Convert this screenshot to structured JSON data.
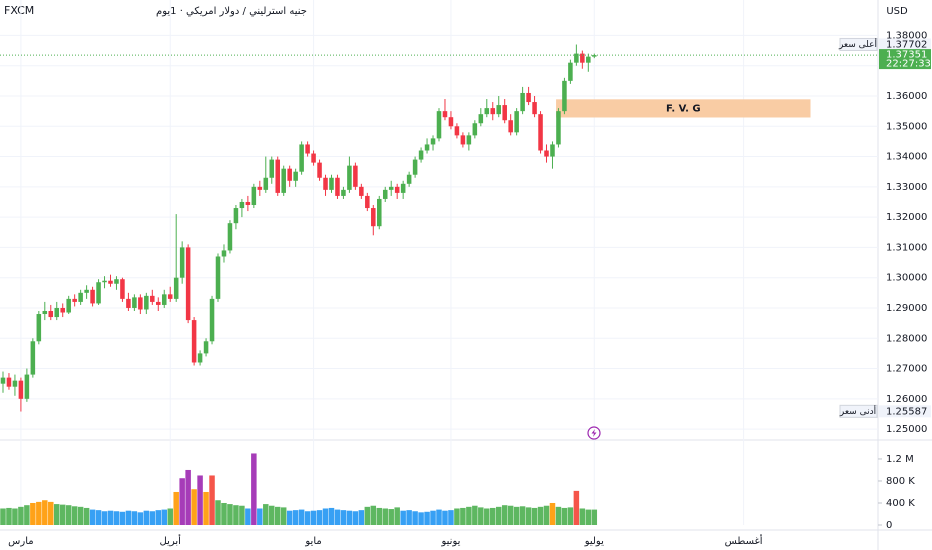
{
  "chart_data": {
    "type": "candlestick",
    "broker": "FXCM",
    "title": "جنيه استرليني / دولار امريكي · 1يوم",
    "currency": "USD",
    "up_color": "#4caf50",
    "down_color": "#f23645",
    "grid": true,
    "ylim": [
      1.2464,
      1.3917
    ],
    "yticks": [
      {
        "value": 1.38,
        "label": "1.38000"
      },
      {
        "value": 1.37,
        "label": "1.37000"
      },
      {
        "value": 1.36,
        "label": "1.36000"
      },
      {
        "value": 1.35,
        "label": "1.35000"
      },
      {
        "value": 1.34,
        "label": "1.34000"
      },
      {
        "value": 1.33,
        "label": "1.33000"
      },
      {
        "value": 1.32,
        "label": "1.32000"
      },
      {
        "value": 1.31,
        "label": "1.31000"
      },
      {
        "value": 1.3,
        "label": "1.30000"
      },
      {
        "value": 1.29,
        "label": "1.29000"
      },
      {
        "value": 1.28,
        "label": "1.28000"
      },
      {
        "value": 1.27,
        "label": "1.27000"
      },
      {
        "value": 1.26,
        "label": "1.26000"
      },
      {
        "value": 1.25,
        "label": "1.25000"
      }
    ],
    "xlim": [
      -0.5,
      146.5
    ],
    "xticks": [
      {
        "value": 3,
        "label": "مارس"
      },
      {
        "value": 28,
        "label": "أبريل"
      },
      {
        "value": 52,
        "label": "مايو"
      },
      {
        "value": 75,
        "label": "يونيو"
      },
      {
        "value": 99,
        "label": "يوليو"
      },
      {
        "value": 124,
        "label": "أغسطس"
      }
    ],
    "ohlc": [
      [
        1.265,
        1.269,
        1.262,
        1.267
      ],
      [
        1.267,
        1.2685,
        1.263,
        1.264
      ],
      [
        1.264,
        1.268,
        1.261,
        1.266
      ],
      [
        1.266,
        1.267,
        1.2558,
        1.26
      ],
      [
        1.26,
        1.27,
        1.259,
        1.268
      ],
      [
        1.268,
        1.28,
        1.267,
        1.279
      ],
      [
        1.279,
        1.289,
        1.278,
        1.288
      ],
      [
        1.288,
        1.292,
        1.286,
        1.289
      ],
      [
        1.289,
        1.291,
        1.286,
        1.287
      ],
      [
        1.287,
        1.292,
        1.286,
        1.29
      ],
      [
        1.29,
        1.2915,
        1.287,
        1.2885
      ],
      [
        1.2885,
        1.294,
        1.288,
        1.293
      ],
      [
        1.293,
        1.2945,
        1.2905,
        1.292
      ],
      [
        1.292,
        1.296,
        1.291,
        1.295
      ],
      [
        1.295,
        1.2975,
        1.293,
        1.296
      ],
      [
        1.296,
        1.297,
        1.2905,
        1.2915
      ],
      [
        1.2915,
        1.2995,
        1.291,
        1.2985
      ],
      [
        1.2985,
        1.3005,
        1.2965,
        1.299
      ],
      [
        1.299,
        1.301,
        1.297,
        1.298
      ],
      [
        1.298,
        1.3005,
        1.296,
        1.2995
      ],
      [
        1.2995,
        1.3,
        1.292,
        1.293
      ],
      [
        1.293,
        1.295,
        1.289,
        1.29
      ],
      [
        1.29,
        1.2945,
        1.289,
        1.2935
      ],
      [
        1.2935,
        1.2945,
        1.288,
        1.2895
      ],
      [
        1.2895,
        1.295,
        1.288,
        1.294
      ],
      [
        1.294,
        1.296,
        1.291,
        1.292
      ],
      [
        1.292,
        1.2935,
        1.289,
        1.291
      ],
      [
        1.291,
        1.296,
        1.29,
        1.2945
      ],
      [
        1.2945,
        1.297,
        1.292,
        1.293
      ],
      [
        1.293,
        1.321,
        1.292,
        1.3
      ],
      [
        1.3,
        1.312,
        1.298,
        1.31
      ],
      [
        1.31,
        1.311,
        1.285,
        1.286
      ],
      [
        1.286,
        1.287,
        1.271,
        1.272
      ],
      [
        1.272,
        1.276,
        1.271,
        1.275
      ],
      [
        1.275,
        1.28,
        1.274,
        1.279
      ],
      [
        1.279,
        1.294,
        1.278,
        1.293
      ],
      [
        1.293,
        1.308,
        1.292,
        1.307
      ],
      [
        1.307,
        1.311,
        1.305,
        1.309
      ],
      [
        1.309,
        1.319,
        1.308,
        1.318
      ],
      [
        1.318,
        1.324,
        1.316,
        1.323
      ],
      [
        1.323,
        1.326,
        1.32,
        1.325
      ],
      [
        1.325,
        1.327,
        1.322,
        1.324
      ],
      [
        1.324,
        1.331,
        1.323,
        1.33
      ],
      [
        1.33,
        1.332,
        1.327,
        1.329
      ],
      [
        1.329,
        1.34,
        1.328,
        1.333
      ],
      [
        1.333,
        1.34,
        1.331,
        1.339
      ],
      [
        1.339,
        1.34,
        1.327,
        1.328
      ],
      [
        1.328,
        1.337,
        1.327,
        1.336
      ],
      [
        1.336,
        1.337,
        1.33,
        1.332
      ],
      [
        1.332,
        1.336,
        1.33,
        1.335
      ],
      [
        1.335,
        1.345,
        1.334,
        1.344
      ],
      [
        1.344,
        1.345,
        1.34,
        1.341
      ],
      [
        1.341,
        1.342,
        1.337,
        1.338
      ],
      [
        1.338,
        1.339,
        1.332,
        1.333
      ],
      [
        1.333,
        1.334,
        1.327,
        1.329
      ],
      [
        1.329,
        1.334,
        1.328,
        1.333
      ],
      [
        1.333,
        1.334,
        1.326,
        1.327
      ],
      [
        1.327,
        1.33,
        1.326,
        1.329
      ],
      [
        1.329,
        1.34,
        1.328,
        1.337
      ],
      [
        1.337,
        1.338,
        1.329,
        1.33
      ],
      [
        1.33,
        1.331,
        1.326,
        1.327
      ],
      [
        1.327,
        1.328,
        1.322,
        1.323
      ],
      [
        1.323,
        1.324,
        1.314,
        1.317
      ],
      [
        1.317,
        1.327,
        1.316,
        1.326
      ],
      [
        1.326,
        1.33,
        1.325,
        1.329
      ],
      [
        1.329,
        1.332,
        1.327,
        1.33
      ],
      [
        1.33,
        1.331,
        1.326,
        1.328
      ],
      [
        1.328,
        1.332,
        1.326,
        1.331
      ],
      [
        1.331,
        1.335,
        1.33,
        1.334
      ],
      [
        1.334,
        1.34,
        1.333,
        1.339
      ],
      [
        1.339,
        1.343,
        1.338,
        1.342
      ],
      [
        1.342,
        1.346,
        1.341,
        1.344
      ],
      [
        1.344,
        1.347,
        1.342,
        1.346
      ],
      [
        1.346,
        1.356,
        1.345,
        1.355
      ],
      [
        1.355,
        1.359,
        1.352,
        1.353
      ],
      [
        1.353,
        1.355,
        1.349,
        1.35
      ],
      [
        1.35,
        1.351,
        1.346,
        1.347
      ],
      [
        1.347,
        1.348,
        1.343,
        1.344
      ],
      [
        1.344,
        1.348,
        1.342,
        1.347
      ],
      [
        1.347,
        1.352,
        1.346,
        1.351
      ],
      [
        1.351,
        1.356,
        1.35,
        1.354
      ],
      [
        1.354,
        1.359,
        1.353,
        1.356
      ],
      [
        1.356,
        1.358,
        1.352,
        1.354
      ],
      [
        1.354,
        1.36,
        1.353,
        1.357
      ],
      [
        1.357,
        1.359,
        1.351,
        1.352
      ],
      [
        1.352,
        1.354,
        1.347,
        1.348
      ],
      [
        1.348,
        1.356,
        1.347,
        1.355
      ],
      [
        1.355,
        1.363,
        1.354,
        1.361
      ],
      [
        1.361,
        1.363,
        1.357,
        1.358
      ],
      [
        1.358,
        1.36,
        1.353,
        1.354
      ],
      [
        1.354,
        1.355,
        1.341,
        1.342
      ],
      [
        1.342,
        1.344,
        1.338,
        1.34
      ],
      [
        1.34,
        1.345,
        1.336,
        1.344
      ],
      [
        1.344,
        1.356,
        1.343,
        1.355
      ],
      [
        1.355,
        1.366,
        1.354,
        1.365
      ],
      [
        1.365,
        1.372,
        1.364,
        1.371
      ],
      [
        1.371,
        1.377,
        1.37,
        1.374
      ],
      [
        1.374,
        1.375,
        1.369,
        1.371
      ],
      [
        1.371,
        1.374,
        1.368,
        1.373
      ],
      [
        1.373,
        1.374,
        1.3725,
        1.3735
      ]
    ],
    "volume": [
      300000,
      310000,
      300000,
      330000,
      360000,
      400000,
      420000,
      450000,
      420000,
      380000,
      370000,
      360000,
      340000,
      330000,
      310000,
      280000,
      270000,
      250000,
      260000,
      250000,
      240000,
      260000,
      250000,
      230000,
      260000,
      250000,
      270000,
      280000,
      300000,
      600000,
      850000,
      1000000,
      650000,
      900000,
      600000,
      900000,
      450000,
      400000,
      380000,
      360000,
      350000,
      300000,
      1300000,
      300000,
      380000,
      350000,
      330000,
      320000,
      260000,
      270000,
      280000,
      250000,
      260000,
      270000,
      300000,
      310000,
      280000,
      270000,
      260000,
      250000,
      270000,
      330000,
      350000,
      310000,
      300000,
      290000,
      320000,
      260000,
      270000,
      250000,
      230000,
      240000,
      260000,
      280000,
      260000,
      270000,
      300000,
      310000,
      330000,
      350000,
      320000,
      300000,
      310000,
      330000,
      360000,
      350000,
      330000,
      340000,
      320000,
      310000,
      330000,
      350000,
      400000,
      330000,
      310000,
      320000,
      620000,
      300000,
      280000,
      280000
    ],
    "volume_colors": [
      "#4caf50",
      "#4caf50",
      "#4caf50",
      "#4caf50",
      "#4caf50",
      "#ff9800",
      "#ff9800",
      "#ff9800",
      "#ff9800",
      "#4caf50",
      "#4caf50",
      "#4caf50",
      "#4caf50",
      "#4caf50",
      "#4caf50",
      "#2196f3",
      "#2196f3",
      "#2196f3",
      "#2196f3",
      "#2196f3",
      "#2196f3",
      "#2196f3",
      "#2196f3",
      "#2196f3",
      "#2196f3",
      "#2196f3",
      "#2196f3",
      "#2196f3",
      "#4caf50",
      "#ff9800",
      "#9c27b0",
      "#9c27b0",
      "#ff9800",
      "#9c27b0",
      "#ff9800",
      "#f44336",
      "#4caf50",
      "#4caf50",
      "#4caf50",
      "#4caf50",
      "#4caf50",
      "#2196f3",
      "#9c27b0",
      "#2196f3",
      "#4caf50",
      "#4caf50",
      "#4caf50",
      "#4caf50",
      "#2196f3",
      "#2196f3",
      "#2196f3",
      "#2196f3",
      "#2196f3",
      "#2196f3",
      "#2196f3",
      "#2196f3",
      "#2196f3",
      "#2196f3",
      "#2196f3",
      "#2196f3",
      "#2196f3",
      "#4caf50",
      "#4caf50",
      "#4caf50",
      "#4caf50",
      "#4caf50",
      "#4caf50",
      "#2196f3",
      "#2196f3",
      "#2196f3",
      "#2196f3",
      "#2196f3",
      "#2196f3",
      "#2196f3",
      "#2196f3",
      "#2196f3",
      "#4caf50",
      "#4caf50",
      "#4caf50",
      "#4caf50",
      "#4caf50",
      "#4caf50",
      "#4caf50",
      "#4caf50",
      "#4caf50",
      "#4caf50",
      "#4caf50",
      "#4caf50",
      "#4caf50",
      "#4caf50",
      "#4caf50",
      "#4caf50",
      "#ff9800",
      "#4caf50",
      "#4caf50",
      "#4caf50",
      "#f44336",
      "#4caf50",
      "#4caf50",
      "#4caf50"
    ],
    "volume_ylim": [
      0,
      1490000
    ],
    "volume_ticks": [
      {
        "value": 1200000,
        "label": "1.2 M"
      },
      {
        "value": 800000,
        "label": "800 K"
      },
      {
        "value": 400000,
        "label": "400 K"
      },
      0
    ],
    "high_marker": {
      "text": "أعلى سعر",
      "value": 1.37702,
      "label": "1.37702"
    },
    "low_marker": {
      "text": "أدنى سعر",
      "value": 1.25587,
      "label": "1.25587"
    },
    "last_price": {
      "value": 1.37351,
      "label": "1.37351",
      "countdown": "22:27:33"
    },
    "fvg": {
      "label": "F. V. G",
      "top": 1.3589,
      "bottom": 1.3529,
      "start": 92.6,
      "end": 135.2
    }
  }
}
